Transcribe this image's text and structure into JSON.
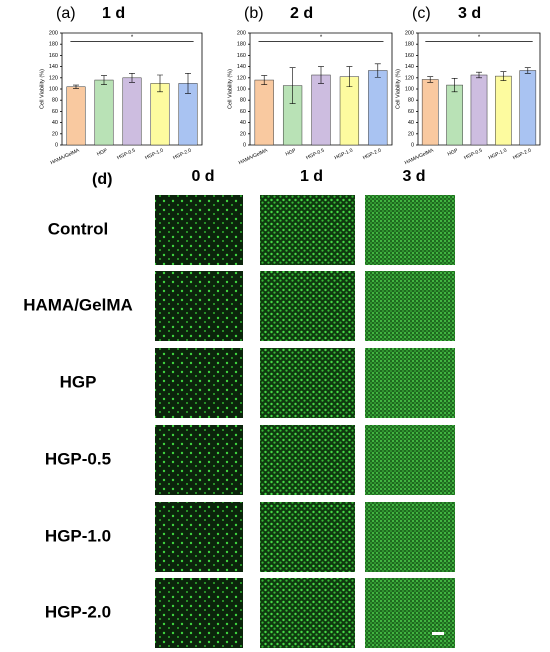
{
  "chart_data": [
    {
      "type": "bar",
      "panel": "(a)",
      "title": "1 d",
      "ylabel": "Cell Viability (%)",
      "categories": [
        "HAMA/GelMA",
        "HGP",
        "HGP-0.5",
        "HGP-1.0",
        "HGP-2.0"
      ],
      "values": [
        104,
        116,
        120,
        110,
        110
      ],
      "errors": [
        3,
        8,
        8,
        15,
        18
      ],
      "colors": [
        "#f9c9a0",
        "#b9e2b6",
        "#cdbde0",
        "#fdfb9f",
        "#a9c3f2"
      ],
      "ylim": [
        0,
        200
      ],
      "yticks": [
        0,
        20,
        40,
        60,
        80,
        100,
        120,
        140,
        160,
        180,
        200
      ],
      "significance": {
        "label": "*",
        "y": 185
      }
    },
    {
      "type": "bar",
      "panel": "(b)",
      "title": "2 d",
      "ylabel": "Cell Viability (%)",
      "categories": [
        "HAMA/GelMA",
        "HGP",
        "HGP-0.5",
        "HGP-1.0",
        "HGP-2.0"
      ],
      "values": [
        116,
        106,
        125,
        122,
        133
      ],
      "errors": [
        8,
        32,
        15,
        18,
        12
      ],
      "colors": [
        "#f9c9a0",
        "#b9e2b6",
        "#cdbde0",
        "#fdfb9f",
        "#a9c3f2"
      ],
      "ylim": [
        0,
        200
      ],
      "yticks": [
        0,
        20,
        40,
        60,
        80,
        100,
        120,
        140,
        160,
        180,
        200
      ],
      "significance": {
        "label": "*",
        "y": 185
      }
    },
    {
      "type": "bar",
      "panel": "(c)",
      "title": "3 d",
      "ylabel": "Cell Viability (%)",
      "categories": [
        "HAMA/GelMA",
        "HGP",
        "HGP-0.5",
        "HGP-1.0",
        "HGP-2.0"
      ],
      "values": [
        117,
        107,
        125,
        123,
        133
      ],
      "errors": [
        5,
        12,
        5,
        8,
        5
      ],
      "colors": [
        "#f9c9a0",
        "#b9e2b6",
        "#cdbde0",
        "#fdfb9f",
        "#a9c3f2"
      ],
      "ylim": [
        0,
        200
      ],
      "yticks": [
        0,
        20,
        40,
        60,
        80,
        100,
        120,
        140,
        160,
        180,
        200
      ],
      "significance": {
        "label": "*",
        "y": 185
      }
    }
  ],
  "panel_d": {
    "panel": "(d)",
    "columns": [
      "0 d",
      "1 d",
      "3 d"
    ],
    "rows": [
      "Control",
      "HAMA/GelMA",
      "HGP",
      "HGP-0.5",
      "HGP-1.0",
      "HGP-2.0"
    ]
  }
}
